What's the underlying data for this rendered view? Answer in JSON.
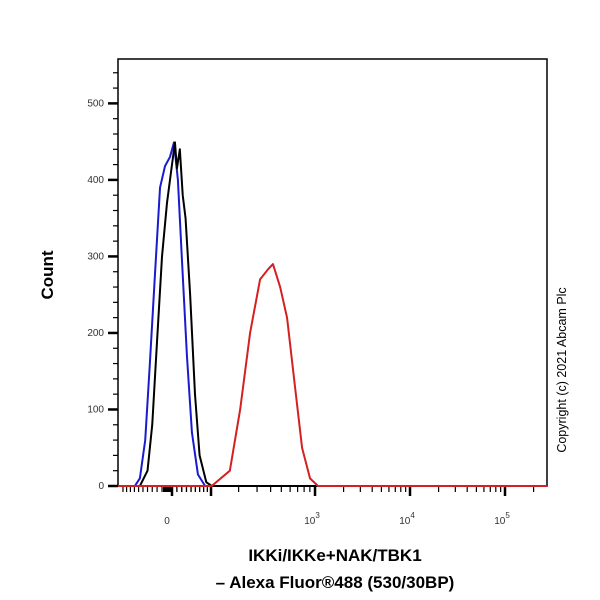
{
  "chart_data": {
    "type": "line",
    "title": "",
    "xlabel_lines": [
      "IKKi/IKKe+NAK/TBK1",
      "– Alexa Fluor®488 (530/30BP)"
    ],
    "ylabel": "Count",
    "x_scale": "biexponential",
    "xlim": [
      -115,
      277000
    ],
    "ylim": [
      0,
      558
    ],
    "grid": false,
    "legend": "none",
    "y_ticks": [
      {
        "value": 0,
        "label": "0"
      },
      {
        "value": 100,
        "label": "100"
      },
      {
        "value": 200,
        "label": "200"
      },
      {
        "value": 300,
        "label": "300"
      },
      {
        "value": 400,
        "label": "400"
      },
      {
        "value": 500,
        "label": "500"
      }
    ],
    "x_ticks": [
      {
        "value": 0,
        "label": "0",
        "exp": ""
      },
      {
        "value": 1000,
        "label": "10",
        "exp": "3"
      },
      {
        "value": 10000,
        "label": "10",
        "exp": "4"
      },
      {
        "value": 100000,
        "label": "10",
        "exp": "5"
      }
    ],
    "series": [
      {
        "color": "#1a1ad0",
        "points": [
          [
            -69,
            0
          ],
          [
            -57,
            10
          ],
          [
            -45,
            60
          ],
          [
            -35,
            160
          ],
          [
            -24,
            280
          ],
          [
            -14,
            390
          ],
          [
            -4,
            418
          ],
          [
            6,
            430
          ],
          [
            14,
            449
          ],
          [
            22,
            400
          ],
          [
            30,
            300
          ],
          [
            41,
            170
          ],
          [
            52,
            70
          ],
          [
            66,
            15
          ],
          [
            84,
            0
          ]
        ]
      },
      {
        "color": "#000000",
        "points": [
          [
            -57,
            0
          ],
          [
            -40,
            20
          ],
          [
            -30,
            80
          ],
          [
            -20,
            190
          ],
          [
            -10,
            300
          ],
          [
            0,
            370
          ],
          [
            10,
            420
          ],
          [
            16,
            449
          ],
          [
            20,
            415
          ],
          [
            26,
            440
          ],
          [
            32,
            380
          ],
          [
            38,
            350
          ],
          [
            48,
            250
          ],
          [
            59,
            120
          ],
          [
            70,
            40
          ],
          [
            87,
            5
          ],
          [
            102,
            0
          ]
        ]
      },
      {
        "color": "#d42020",
        "points": [
          [
            102,
            0
          ],
          [
            163,
            20
          ],
          [
            207,
            100
          ],
          [
            258,
            200
          ],
          [
            320,
            270
          ],
          [
            378,
            283
          ],
          [
            420,
            290
          ],
          [
            488,
            260
          ],
          [
            563,
            220
          ],
          [
            663,
            130
          ],
          [
            767,
            50
          ],
          [
            903,
            10
          ],
          [
            1075,
            0
          ]
        ]
      }
    ]
  },
  "copyright": "Copyright (c) 2021 Abcam Plc"
}
